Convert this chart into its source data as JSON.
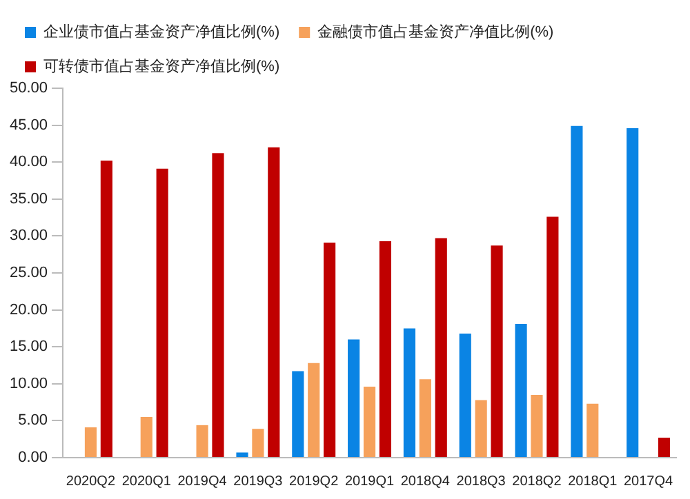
{
  "chart_data": {
    "type": "bar",
    "categories": [
      "2020Q2",
      "2020Q1",
      "2019Q4",
      "2019Q3",
      "2019Q2",
      "2019Q1",
      "2018Q4",
      "2018Q3",
      "2018Q2",
      "2018Q1",
      "2017Q4"
    ],
    "series": [
      {
        "name": "企业债市值占基金资产净值比例(%)",
        "color": "#0a84e4",
        "values": [
          null,
          null,
          null,
          0.7,
          11.7,
          16.0,
          17.5,
          16.8,
          18.1,
          44.9,
          44.6
        ]
      },
      {
        "name": "金融债市值占基金资产净值比例(%)",
        "color": "#f6a15b",
        "values": [
          4.1,
          5.5,
          4.4,
          3.9,
          12.8,
          9.6,
          10.6,
          7.8,
          8.5,
          7.3,
          null
        ]
      },
      {
        "name": "可转债市值占基金资产净值比例(%)",
        "color": "#c00000",
        "values": [
          40.2,
          39.1,
          41.2,
          42.0,
          29.1,
          29.3,
          29.7,
          28.7,
          32.6,
          null,
          2.7
        ]
      }
    ],
    "ylim": [
      0,
      50
    ],
    "yticks": [
      {
        "value": 0,
        "label": "0.00"
      },
      {
        "value": 5,
        "label": "5.00"
      },
      {
        "value": 10,
        "label": "10.00"
      },
      {
        "value": 15,
        "label": "15.00"
      },
      {
        "value": 20,
        "label": "20.00"
      },
      {
        "value": 25,
        "label": "25.00"
      },
      {
        "value": 30,
        "label": "30.00"
      },
      {
        "value": 35,
        "label": "35.00"
      },
      {
        "value": 40,
        "label": "40.00"
      },
      {
        "value": 45,
        "label": "45.00"
      },
      {
        "value": 50,
        "label": "50.00"
      }
    ],
    "grid": false,
    "legend": "top"
  }
}
